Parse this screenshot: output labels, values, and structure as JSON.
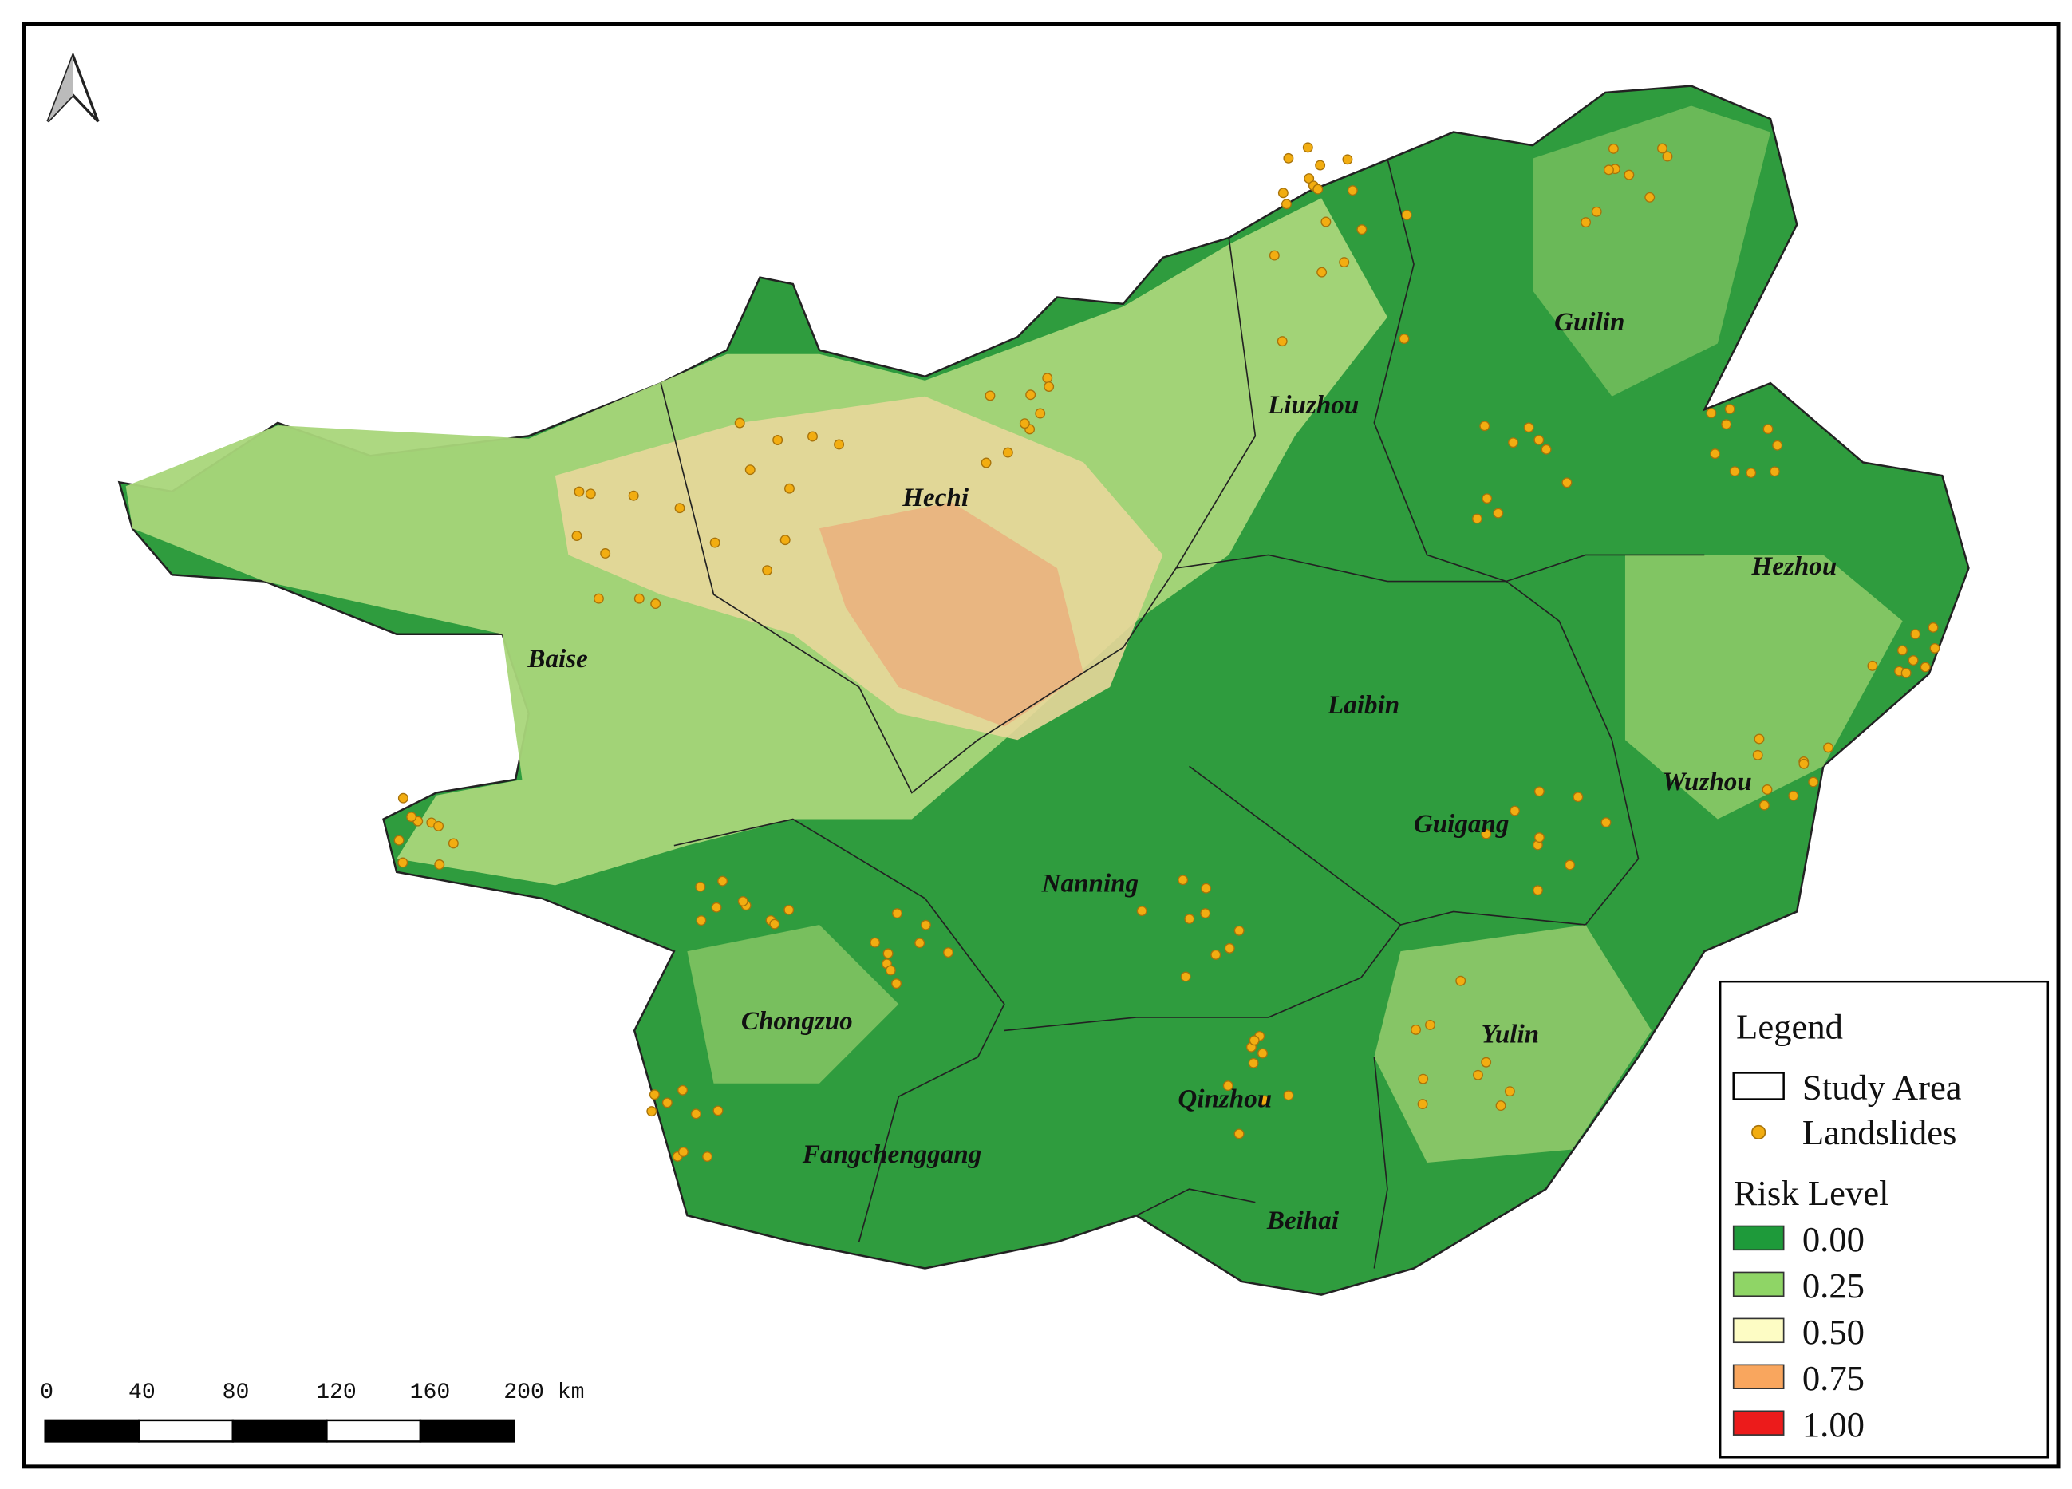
{
  "cities": [
    "Hechi",
    "Baise",
    "Liuzhou",
    "Guilin",
    "Hezhou",
    "Laibin",
    "Wuzhou",
    "Guigang",
    "Nanning",
    "Chongzuo",
    "Yulin",
    "Qinzhou",
    "Fangchenggang",
    "Beihai"
  ],
  "legend": {
    "title": "Legend",
    "items": [
      "Study Area",
      "Landslides"
    ],
    "risk_title": "Risk Level",
    "risk_levels": [
      "0.00",
      "0.25",
      "0.50",
      "0.75",
      "1.00"
    ]
  },
  "scale_bar": {
    "labels": [
      "0",
      "40",
      "80",
      "120",
      "160",
      "200 km"
    ]
  }
}
